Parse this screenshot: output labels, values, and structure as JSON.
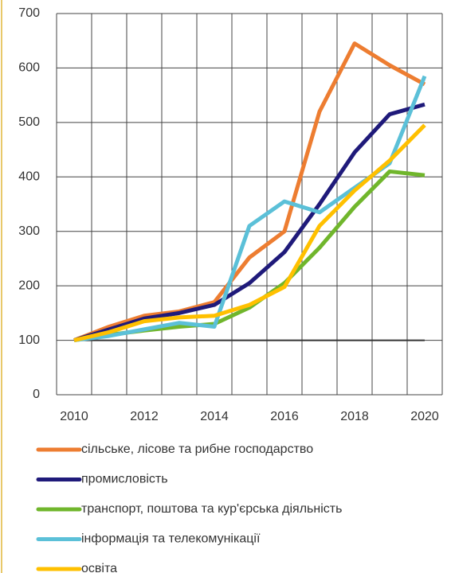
{
  "chart_data": {
    "type": "line",
    "categories": [
      "2010",
      null,
      "2012",
      null,
      "2014",
      null,
      "2016",
      null,
      "2018",
      null,
      "2020"
    ],
    "series": [
      {
        "name": "сільське, лісове та рибне господарство",
        "color": "#ed7d31",
        "values": [
          100,
          125,
          145,
          153,
          170,
          252,
          300,
          520,
          645,
          605,
          570
        ]
      },
      {
        "name": "промисловість",
        "color": "#1f1a7a",
        "values": [
          100,
          120,
          140,
          150,
          165,
          205,
          262,
          350,
          445,
          515,
          533
        ]
      },
      {
        "name": "транспорт, поштова та кур'єрська діяльність",
        "color": "#70b62c",
        "values": [
          100,
          110,
          118,
          125,
          130,
          160,
          205,
          270,
          345,
          410,
          403
        ]
      },
      {
        "name": "інформація та телекомунікації",
        "color": "#5bc0d8",
        "values": [
          100,
          108,
          120,
          132,
          125,
          310,
          355,
          335,
          380,
          425,
          585
        ]
      },
      {
        "name": "освіта",
        "color": "#ffc000",
        "values": [
          100,
          115,
          135,
          142,
          145,
          165,
          198,
          310,
          375,
          430,
          495
        ]
      }
    ],
    "reference_line": {
      "value": 100,
      "color": "#333333"
    },
    "ylim": [
      0,
      700
    ],
    "yticks": [
      0,
      100,
      200,
      300,
      400,
      500,
      600,
      700
    ],
    "grid": true,
    "legend": "bottom"
  }
}
